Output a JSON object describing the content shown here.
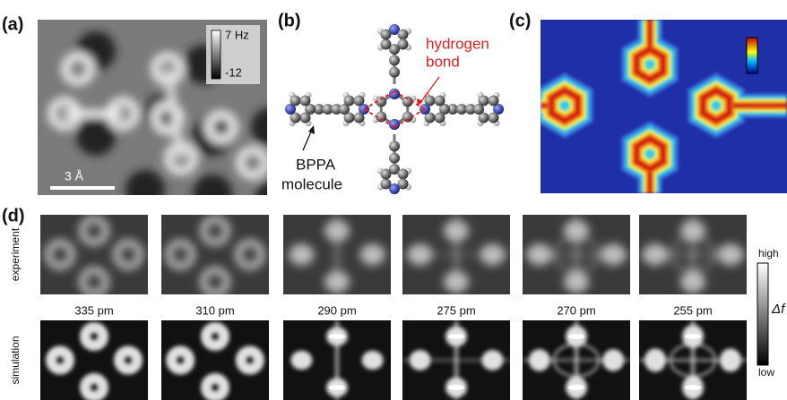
{
  "figure": {
    "panel_a": {
      "label": "(a)",
      "colorbar_max": "7 Hz",
      "colorbar_min": "-12",
      "scale_bar": "3 Å"
    },
    "panel_b": {
      "label": "(b)",
      "bond_label": [
        "hydrogen",
        "bond"
      ],
      "molecule_label": [
        "BPPA",
        "molecule"
      ]
    },
    "panel_c": {
      "label": "(c)"
    },
    "panel_d": {
      "label": "(d)",
      "rows": [
        "experiment",
        "simulation"
      ],
      "heights": [
        "335 pm",
        "310 pm",
        "290 pm",
        "275 pm",
        "270 pm",
        "255 pm"
      ],
      "colorbar": {
        "high": "high",
        "low": "low",
        "quantity": "Δf"
      }
    }
  }
}
